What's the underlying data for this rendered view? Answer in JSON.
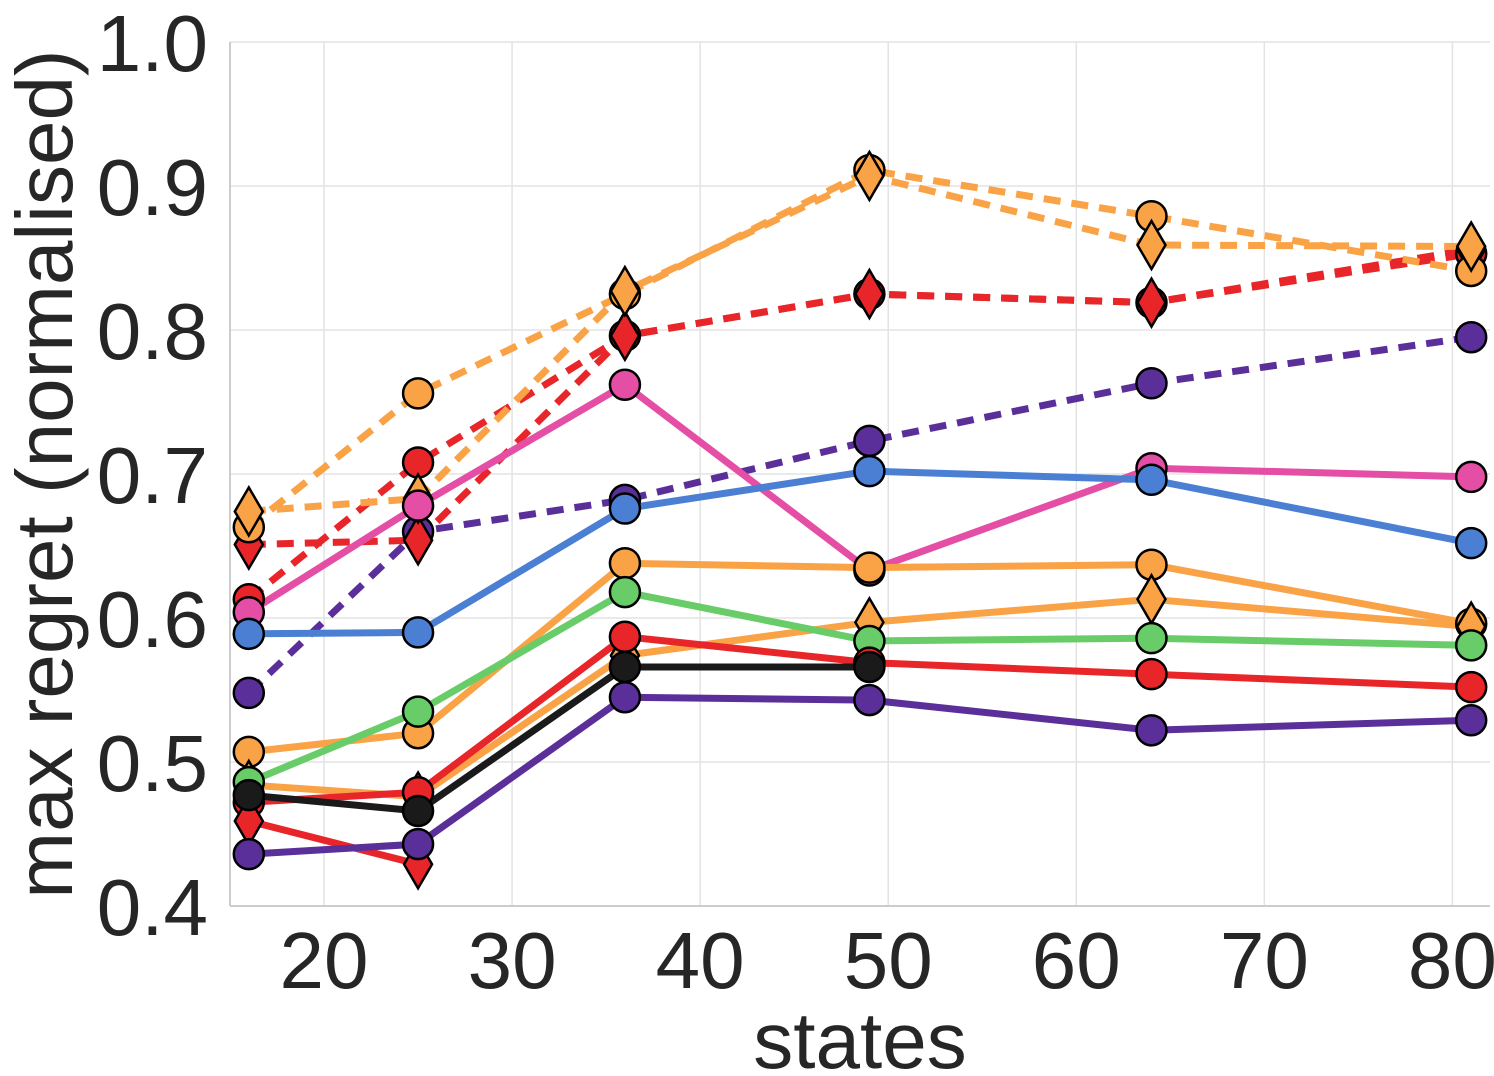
{
  "chart_data": {
    "type": "line",
    "title": "",
    "xlabel": "states",
    "ylabel": "max regret (normalised)",
    "xlim": [
      15,
      82
    ],
    "ylim": [
      0.4,
      1.0
    ],
    "xticks": [
      20,
      30,
      40,
      50,
      60,
      70,
      80
    ],
    "yticks": [
      0.4,
      0.5,
      0.6,
      0.7,
      0.8,
      0.9,
      1.0
    ],
    "xtick_labels": [
      "20",
      "30",
      "40",
      "50",
      "60",
      "70",
      "80"
    ],
    "ytick_labels": [
      "0.4",
      "0.5",
      "0.6",
      "0.7",
      "0.8",
      "0.9",
      "1.0"
    ],
    "grid": true,
    "x": [
      16,
      25,
      36,
      49,
      64,
      81
    ],
    "series": [
      {
        "color": "#5b2f99",
        "dash": true,
        "marker": "circle",
        "values": [
          0.548,
          0.66,
          0.682,
          0.723,
          0.763,
          0.795
        ]
      },
      {
        "color": "#e8262a",
        "dash": true,
        "marker": "circle",
        "values": [
          0.613,
          0.708,
          0.796,
          0.825,
          0.819,
          0.853
        ]
      },
      {
        "color": "#e8262a",
        "dash": true,
        "marker": "diamond",
        "values": [
          0.651,
          0.654,
          0.796,
          0.825,
          0.819,
          0.856
        ]
      },
      {
        "color": "#f9a346",
        "dash": true,
        "marker": "circle",
        "values": [
          0.663,
          0.756,
          0.825,
          0.911,
          0.879,
          0.841
        ]
      },
      {
        "color": "#f9a346",
        "dash": true,
        "marker": "diamond",
        "values": [
          0.674,
          0.683,
          0.827,
          0.907,
          0.859,
          0.858
        ]
      },
      {
        "color": "#e54ea5",
        "dash": false,
        "marker": "circle",
        "values": [
          0.604,
          0.678,
          0.762,
          0.633,
          0.704,
          0.698
        ]
      },
      {
        "color": "#4a7fd3",
        "dash": false,
        "marker": "circle",
        "values": [
          0.589,
          0.59,
          0.676,
          0.702,
          0.696,
          0.652
        ]
      },
      {
        "color": "#f9a346",
        "dash": false,
        "marker": "circle",
        "values": [
          0.507,
          0.52,
          0.638,
          0.635,
          0.637,
          0.596
        ]
      },
      {
        "color": "#f9a346",
        "dash": false,
        "marker": "diamond",
        "values": [
          0.484,
          0.476,
          0.574,
          0.597,
          0.613,
          0.594
        ]
      },
      {
        "color": "#68cc68",
        "dash": false,
        "marker": "circle",
        "values": [
          0.486,
          0.535,
          0.618,
          0.584,
          0.586,
          0.581
        ]
      },
      {
        "color": "#e8262a",
        "dash": false,
        "marker": "circle",
        "values": [
          0.472,
          0.479,
          0.587,
          0.569,
          0.561,
          0.552
        ]
      },
      {
        "color": "#e8262a",
        "dash": false,
        "marker": "diamond",
        "values": [
          0.459,
          0.429,
          null,
          null,
          null,
          null
        ]
      },
      {
        "color": "#1a1a1a",
        "dash": false,
        "marker": "circle",
        "values": [
          0.477,
          0.466,
          0.566,
          0.566,
          null,
          null
        ]
      },
      {
        "color": "#5b2f99",
        "dash": false,
        "marker": "circle",
        "values": [
          0.436,
          0.443,
          0.545,
          0.543,
          0.522,
          0.529
        ]
      }
    ]
  }
}
